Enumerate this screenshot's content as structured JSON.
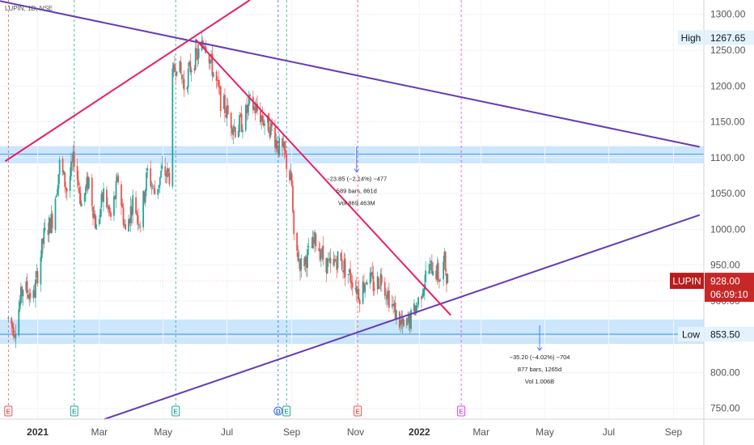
{
  "header": {
    "symbol_line": "LUPIN, 1D, NSE"
  },
  "chart_data": {
    "type": "candlestick",
    "symbol": "LUPIN",
    "interval": "1D",
    "exchange": "NSE",
    "ylim": [
      735,
      1320
    ],
    "y_ticks": [
      "1300.00",
      "1250.00",
      "1200.00",
      "1150.00",
      "1100.00",
      "1050.00",
      "1000.00",
      "950.00",
      "900.00",
      "850.00",
      "800.00",
      "750.00"
    ],
    "x_ticks": [
      {
        "label": "2021",
        "bold": true
      },
      {
        "label": "Mar",
        "bold": false
      },
      {
        "label": "May",
        "bold": false
      },
      {
        "label": "Jul",
        "bold": false
      },
      {
        "label": "Sep",
        "bold": false
      },
      {
        "label": "Nov",
        "bold": false
      },
      {
        "label": "2022",
        "bold": true
      },
      {
        "label": "Mar",
        "bold": false
      },
      {
        "label": "May",
        "bold": false
      },
      {
        "label": "Jul",
        "bold": false
      },
      {
        "label": "Sep",
        "bold": false
      }
    ],
    "last_price": {
      "label": "LUPIN",
      "value": "928.00",
      "countdown": "06:09:10"
    },
    "high": {
      "label": "High",
      "value": "1267.65"
    },
    "low": {
      "label": "Low",
      "value": "853.50"
    },
    "zones": [
      {
        "from": 1092,
        "to": 1116
      },
      {
        "from": 840,
        "to": 874
      }
    ],
    "horizontal_lines": [
      1105,
      853.5
    ],
    "trend_lines": [
      {
        "color": "#673ab7",
        "from": {
          "date": "2020-10-03",
          "price": 1335
        },
        "to": {
          "date": "2022-09-26",
          "price": 1115
        }
      },
      {
        "color": "#673ab7",
        "from": {
          "date": "2021-03-06",
          "price": 735
        },
        "to": {
          "date": "2022-09-26",
          "price": 1020
        }
      },
      {
        "color": "#e91e63",
        "from": {
          "date": "2020-12-01",
          "price": 1095
        },
        "to": {
          "date": "2021-07-23",
          "price": 1320
        }
      },
      {
        "color": "#e91e63",
        "from": {
          "date": "2021-06-01",
          "price": 1265
        },
        "to": {
          "date": "2022-01-31",
          "price": 880
        }
      }
    ],
    "event_lines": [
      {
        "date": "2020-12-04",
        "color": "#ef5350",
        "marker": "E"
      },
      {
        "date": "2021-02-05",
        "color": "#26a69a",
        "marker": "E"
      },
      {
        "date": "2021-05-13",
        "color": "#26a69a",
        "marker": "E"
      },
      {
        "date": "2021-08-19",
        "color": "#2962ff",
        "marker": "D"
      },
      {
        "date": "2021-08-27",
        "color": "#26a69a",
        "marker": "E"
      },
      {
        "date": "2021-11-03",
        "color": "#ef5350",
        "marker": "E"
      },
      {
        "date": "2022-02-10",
        "color": "#e040fb",
        "marker": "E"
      }
    ],
    "annotations": [
      {
        "lines": [
          "−23.85 (−2.14%) −477",
          "589 bars, 861d",
          "Vol 869.463M"
        ],
        "at_date": "2021-11-02",
        "at_price": 1072
      },
      {
        "lines": [
          "−35.20 (−4.02%) −704",
          "877 bars, 1265d",
          "Vol 1.006B"
        ],
        "at_date": "2022-04-26",
        "at_price": 823
      }
    ],
    "price_path": [
      [
        "2020-12-04",
        875
      ],
      [
        "2020-12-10",
        860
      ],
      [
        "2020-12-18",
        920
      ],
      [
        "2020-12-28",
        905
      ],
      [
        "2021-01-07",
        990
      ],
      [
        "2021-01-15",
        1015
      ],
      [
        "2021-01-22",
        1090
      ],
      [
        "2021-01-29",
        1055
      ],
      [
        "2021-02-05",
        1100
      ],
      [
        "2021-02-12",
        1035
      ],
      [
        "2021-02-19",
        1070
      ],
      [
        "2021-02-26",
        1000
      ],
      [
        "2021-03-05",
        1050
      ],
      [
        "2021-03-12",
        1015
      ],
      [
        "2021-03-19",
        1070
      ],
      [
        "2021-03-26",
        995
      ],
      [
        "2021-04-02",
        1040
      ],
      [
        "2021-04-09",
        1010
      ],
      [
        "2021-04-16",
        1080
      ],
      [
        "2021-04-23",
        1050
      ],
      [
        "2021-04-30",
        1080
      ],
      [
        "2021-05-07",
        1075
      ],
      [
        "2021-05-10",
        1210
      ],
      [
        "2021-05-14",
        1235
      ],
      [
        "2021-05-21",
        1200
      ],
      [
        "2021-05-28",
        1230
      ],
      [
        "2021-06-04",
        1245
      ],
      [
        "2021-06-10",
        1265
      ],
      [
        "2021-06-17",
        1225
      ],
      [
        "2021-06-25",
        1180
      ],
      [
        "2021-07-02",
        1160
      ],
      [
        "2021-07-09",
        1140
      ],
      [
        "2021-07-16",
        1150
      ],
      [
        "2021-07-23",
        1175
      ],
      [
        "2021-07-30",
        1165
      ],
      [
        "2021-08-06",
        1150
      ],
      [
        "2021-08-13",
        1140
      ],
      [
        "2021-08-19",
        1115
      ],
      [
        "2021-08-25",
        1105
      ],
      [
        "2021-09-01",
        1060
      ],
      [
        "2021-09-03",
        980
      ],
      [
        "2021-09-10",
        950
      ],
      [
        "2021-09-17",
        965
      ],
      [
        "2021-09-24",
        985
      ],
      [
        "2021-10-01",
        960
      ],
      [
        "2021-10-08",
        945
      ],
      [
        "2021-10-15",
        960
      ],
      [
        "2021-10-22",
        945
      ],
      [
        "2021-10-29",
        930
      ],
      [
        "2021-11-05",
        910
      ],
      [
        "2021-11-12",
        935
      ],
      [
        "2021-11-19",
        920
      ],
      [
        "2021-11-26",
        935
      ],
      [
        "2021-12-03",
        905
      ],
      [
        "2021-12-10",
        880
      ],
      [
        "2021-12-17",
        860
      ],
      [
        "2021-12-24",
        875
      ],
      [
        "2021-12-31",
        900
      ],
      [
        "2022-01-07",
        935
      ],
      [
        "2022-01-14",
        950
      ],
      [
        "2022-01-21",
        930
      ],
      [
        "2022-01-25",
        955
      ],
      [
        "2022-01-28",
        928
      ]
    ]
  }
}
